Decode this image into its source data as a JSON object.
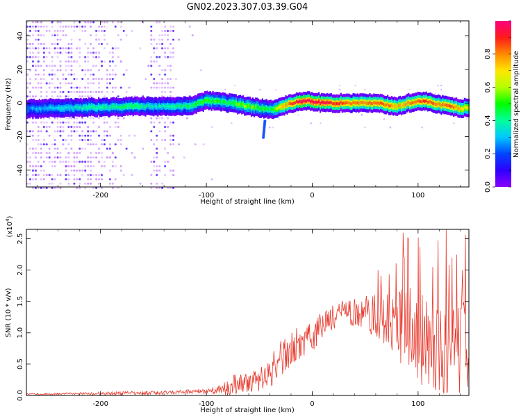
{
  "title": "GN02.2023.307.03.39.G04",
  "chart_data": [
    {
      "type": "heatmap",
      "xlabel": "Height of straight line (km)",
      "ylabel": "Frequency (Hz)",
      "xlim": [
        -270,
        148
      ],
      "ylim": [
        -50,
        49
      ],
      "xticks": [
        -200,
        -100,
        0,
        100
      ],
      "yticks": [
        -40,
        -20,
        0,
        20,
        40
      ],
      "colorbar": {
        "label": "Normalized spectral amplitude",
        "range": [
          0,
          1
        ],
        "ticks": [
          "0.0",
          "0.2",
          "0.4",
          "0.6",
          "0.8"
        ],
        "tick_values": [
          0,
          0.2,
          0.4,
          0.6,
          0.8
        ],
        "colormap": [
          "#8b00ff",
          "#2d00ff",
          "#0046ff",
          "#00c8ff",
          "#00ff9c",
          "#00ff00",
          "#b4ff00",
          "#ffe600",
          "#ff8a00",
          "#ff1a1a",
          "#ff0080"
        ]
      },
      "ridge": {
        "height_km": [
          -270,
          -250,
          -230,
          -210,
          -190,
          -170,
          -150,
          -130,
          -115,
          -100,
          -90,
          -80,
          -70,
          -60,
          -50,
          -40,
          -30,
          -20,
          -10,
          0,
          10,
          20,
          30,
          40,
          50,
          60,
          70,
          80,
          90,
          100,
          110,
          120,
          130,
          140,
          148
        ],
        "frequency_hz": [
          -3.5,
          -3,
          -3,
          -2.5,
          -2.5,
          -2,
          -2,
          -2,
          -1.5,
          1.5,
          1,
          0,
          -1,
          -2,
          -3,
          -4,
          -2,
          0,
          1,
          1,
          0,
          0,
          0,
          0,
          0,
          0,
          -1,
          -2,
          0,
          1,
          1,
          -1,
          -2,
          -3,
          -3
        ],
        "peak_amplitude": [
          0.25,
          0.3,
          0.35,
          0.4,
          0.4,
          0.45,
          0.35,
          0.4,
          0.45,
          0.5,
          0.5,
          0.45,
          0.55,
          0.55,
          0.5,
          0.45,
          0.7,
          0.85,
          0.95,
          0.95,
          0.95,
          0.9,
          0.85,
          0.8,
          0.8,
          0.85,
          0.8,
          0.75,
          0.8,
          0.85,
          0.85,
          0.8,
          0.85,
          0.7,
          0.65
        ]
      },
      "features": [
        {
          "type": "streak",
          "height_km": -46,
          "frequency_hz_from": -10,
          "frequency_hz_to": -20,
          "amplitude": 0.2
        }
      ]
    },
    {
      "type": "line",
      "xlabel": "Height of straight line (km)",
      "ylabel": "SNR (10 * v/v)",
      "y_multiplier": "(x10",
      "y_multiplier_exp": "4",
      "y_multiplier_close": ")",
      "xlim": [
        -270,
        148
      ],
      "ylim": [
        0,
        2.65
      ],
      "xticks": [
        -200,
        -100,
        0,
        100
      ],
      "yticks": [
        "0.0",
        "0.5",
        "1.0",
        "1.5",
        "2.0",
        "2.5"
      ],
      "ytick_values": [
        0,
        0.5,
        1.0,
        1.5,
        2.0,
        2.5
      ],
      "series": [
        {
          "color": "#e8392c",
          "x": [
            -270,
            -250,
            -230,
            -210,
            -190,
            -170,
            -150,
            -130,
            -110,
            -100,
            -90,
            -80,
            -70,
            -60,
            -50,
            -40,
            -35,
            -30,
            -20,
            -10,
            0,
            10,
            20,
            30,
            40,
            50,
            60,
            70,
            80,
            90,
            100,
            110,
            120,
            130,
            140,
            148
          ],
          "baseline": [
            0.02,
            0.02,
            0.03,
            0.03,
            0.03,
            0.04,
            0.04,
            0.05,
            0.06,
            0.07,
            0.08,
            0.12,
            0.2,
            0.2,
            0.25,
            0.35,
            0.5,
            0.6,
            0.75,
            0.85,
            0.95,
            1.15,
            1.25,
            1.35,
            1.35,
            1.3,
            1.3,
            1.2,
            1.15,
            1.0,
            0.95,
            0.85,
            0.85,
            0.85,
            0.8,
            0.8
          ],
          "spread": [
            0.015,
            0.015,
            0.015,
            0.02,
            0.03,
            0.03,
            0.03,
            0.03,
            0.04,
            0.05,
            0.06,
            0.12,
            0.18,
            0.15,
            0.2,
            0.25,
            0.3,
            0.3,
            0.3,
            0.25,
            0.25,
            0.25,
            0.2,
            0.2,
            0.25,
            0.3,
            0.35,
            0.45,
            0.6,
            0.75,
            0.75,
            0.75,
            0.8,
            0.85,
            0.85,
            0.8
          ]
        }
      ]
    }
  ]
}
